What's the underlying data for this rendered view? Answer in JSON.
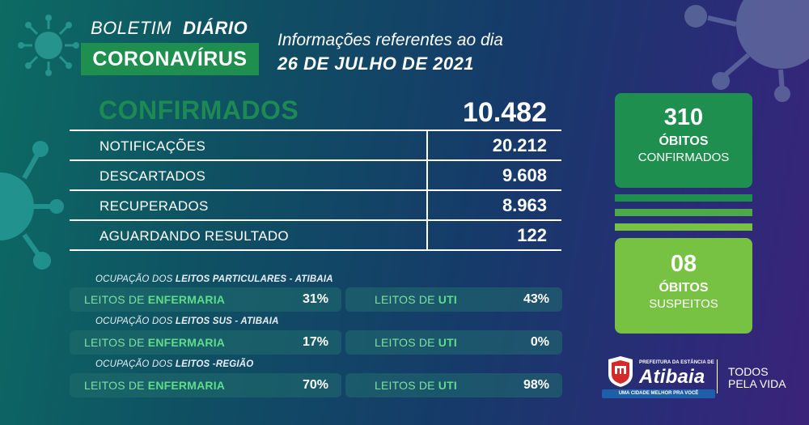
{
  "header": {
    "boletim": "BOLETIM",
    "diario": "DIÁRIO",
    "coronavirus": "CORONAVÍRUS",
    "info": "Informações referentes ao dia",
    "date": "26  DE JULHO DE 2021"
  },
  "summary": {
    "confirmados_label": "CONFIRMADOS",
    "confirmados_value": "10.482",
    "rows": [
      {
        "label": "NOTIFICAÇÕES",
        "value": "20.212"
      },
      {
        "label": "DESCARTADOS",
        "value": "9.608"
      },
      {
        "label": "RECUPERADOS",
        "value": "8.963"
      },
      {
        "label": "AGUARDANDO RESULTADO",
        "value": "122"
      }
    ]
  },
  "beds": [
    {
      "title_prefix": "OCUPAÇÃO DOS ",
      "title_bold": "LEITOS PARTICULARES - ATIBAIA",
      "enfermaria_prefix": "LEITOS DE ",
      "enfermaria_bold": "ENFERMARIA",
      "enfermaria_pct": "31%",
      "uti_prefix": "LEITOS DE ",
      "uti_bold": "UTI",
      "uti_pct": "43%"
    },
    {
      "title_prefix": "OCUPAÇÃO DOS ",
      "title_bold": "LEITOS SUS - ATIBAIA",
      "enfermaria_prefix": "LEITOS DE ",
      "enfermaria_bold": "ENFERMARIA",
      "enfermaria_pct": "17%",
      "uti_prefix": "LEITOS DE ",
      "uti_bold": "UTI",
      "uti_pct": "0%"
    },
    {
      "title_prefix": "OCUPAÇÃO DOS ",
      "title_bold": "LEITOS -REGIÃO",
      "enfermaria_prefix": "LEITOS DE ",
      "enfermaria_bold": "ENFERMARIA",
      "enfermaria_pct": "70%",
      "uti_prefix": "LEITOS DE ",
      "uti_bold": "UTI",
      "uti_pct": "98%"
    }
  ],
  "obitos": {
    "confirmados_num": "310",
    "confirmados_title": "ÓBITOS",
    "confirmados_sub": "CONFIRMADOS",
    "suspeitos_num": "08",
    "suspeitos_title": "ÓBITOS",
    "suspeitos_sub": "SUSPEITOS"
  },
  "logo": {
    "prefeitura": "PREFEITURA DA ESTÂNCIA DE",
    "name": "Atibaia",
    "slogan": "UMA CIDADE MELHOR PRA VOCÊ",
    "todos_line1": "TODOS",
    "todos_line2": "PELA VIDA"
  },
  "colors": {
    "green_dark": "#1f8f4f",
    "green_light": "#77c243",
    "accent_text": "#5fdc8a"
  }
}
